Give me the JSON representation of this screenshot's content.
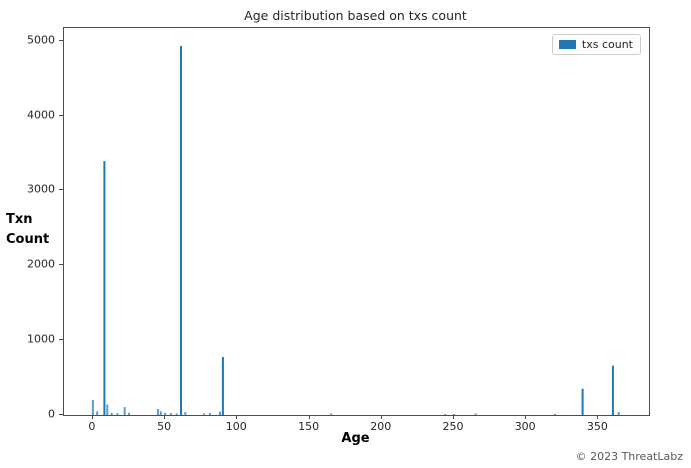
{
  "title": "Age distribution based on txs count",
  "footer": "© 2023 ThreatLabz",
  "legend": {
    "label": "txs count",
    "swatch_color": "#1f77b4"
  },
  "axes": {
    "x": {
      "label": "Age",
      "ticks": [
        0,
        50,
        100,
        150,
        200,
        250,
        300,
        350
      ],
      "range": [
        -20,
        385
      ]
    },
    "y": {
      "label_lines": [
        "Txn",
        "Count"
      ],
      "ticks": [
        0,
        1000,
        2000,
        3000,
        4000,
        5000
      ],
      "range": [
        0,
        5170
      ]
    }
  },
  "chart_data": {
    "type": "bar",
    "title": "Age distribution based on txs count",
    "xlabel": "Age",
    "ylabel": "Txn Count",
    "legend_entries": [
      "txs count"
    ],
    "legend_position": "upper right",
    "bar_color": "#1f77b4",
    "grid": false,
    "xlim": [
      -20,
      385
    ],
    "ylim": [
      0,
      5170
    ],
    "x_ticks": [
      0,
      50,
      100,
      150,
      200,
      250,
      300,
      350
    ],
    "y_ticks": [
      0,
      1000,
      2000,
      3000,
      4000,
      5000
    ],
    "points_note": "age vs transaction count; thin spike bars",
    "points": [
      [
        0,
        200
      ],
      [
        3,
        50
      ],
      [
        8,
        3390
      ],
      [
        10,
        140
      ],
      [
        13,
        30
      ],
      [
        17,
        25
      ],
      [
        22,
        105
      ],
      [
        25,
        30
      ],
      [
        45,
        80
      ],
      [
        47,
        50
      ],
      [
        50,
        30
      ],
      [
        54,
        25
      ],
      [
        58,
        20
      ],
      [
        61,
        4930
      ],
      [
        64,
        40
      ],
      [
        77,
        20
      ],
      [
        81,
        25
      ],
      [
        88,
        45
      ],
      [
        90,
        775
      ],
      [
        165,
        20
      ],
      [
        244,
        15
      ],
      [
        250,
        15
      ],
      [
        265,
        20
      ],
      [
        320,
        15
      ],
      [
        339,
        350
      ],
      [
        360,
        660
      ],
      [
        364,
        40
      ]
    ]
  }
}
